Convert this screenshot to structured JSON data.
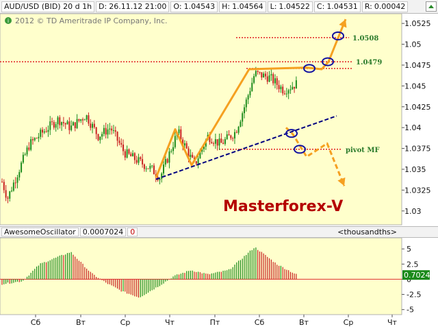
{
  "header": {
    "symbol": "AUD/USD (BID) 20 d 1h",
    "date_label": "D:",
    "date_value": "26.11.12 21:00",
    "open_label": "O:",
    "open_value": "1.04543",
    "high_label": "H:",
    "high_value": "1.04564",
    "low_label": "L:",
    "low_value": "1.04522",
    "close_label": "C:",
    "close_value": "1.04531",
    "range_label": "R:",
    "range_value": "0.00042"
  },
  "copyright": "2012 © TD Ameritrade IP Company, Inc.",
  "watermark": "Masterforex-V",
  "oscillator": {
    "name": "AwesomeOscillator",
    "value": "0.0007024",
    "flag": "0",
    "units": "<thousandths>",
    "current_label": "0.7024"
  },
  "colors": {
    "chart_bg": "#ffffcc",
    "bull_candle": "#1e8c1e",
    "bear_candle": "#c82020",
    "level_line": "#e02020",
    "trend_line": "#000080",
    "wave": "#f5a020",
    "marker": "#1010a0",
    "watermark": "#b40000",
    "level_label": "#2a7a2a"
  },
  "chart_data": {
    "type": "candlestick",
    "y_range": [
      1.0285,
      1.0535
    ],
    "y_ticks": [
      "1.0525",
      "1.05",
      "1.0475",
      "1.045",
      "1.0425",
      "1.04",
      "1.0375",
      "1.035",
      "1.0325",
      "1.03"
    ],
    "x_ticks": [
      "Сб",
      "Вт",
      "Ср",
      "Чт",
      "Пт",
      "Сб",
      "Вт",
      "Ср",
      "Чт"
    ],
    "key_points": [
      {
        "t": 0,
        "v": 1.0335
      },
      {
        "t": 8,
        "v": 1.0315
      },
      {
        "t": 20,
        "v": 1.034
      },
      {
        "t": 40,
        "v": 1.038
      },
      {
        "t": 60,
        "v": 1.0395
      },
      {
        "t": 82,
        "v": 1.041
      },
      {
        "t": 100,
        "v": 1.04
      },
      {
        "t": 122,
        "v": 1.0415
      },
      {
        "t": 140,
        "v": 1.039
      },
      {
        "t": 158,
        "v": 1.04
      },
      {
        "t": 178,
        "v": 1.037
      },
      {
        "t": 198,
        "v": 1.036
      },
      {
        "t": 218,
        "v": 1.035
      },
      {
        "t": 230,
        "v": 1.034
      },
      {
        "t": 256,
        "v": 1.0395
      },
      {
        "t": 280,
        "v": 1.0355
      },
      {
        "t": 300,
        "v": 1.039
      },
      {
        "t": 318,
        "v": 1.038
      },
      {
        "t": 340,
        "v": 1.0395
      },
      {
        "t": 355,
        "v": 1.043
      },
      {
        "t": 368,
        "v": 1.0465
      },
      {
        "t": 390,
        "v": 1.046
      },
      {
        "t": 410,
        "v": 1.0445
      },
      {
        "t": 430,
        "v": 1.0453
      }
    ],
    "levels": [
      {
        "label": "1.0508",
        "value": 1.0508
      },
      {
        "label": "1.0479",
        "value": 1.0479
      },
      {
        "label": "",
        "value": 1.0471
      },
      {
        "label": "pivot MF",
        "value": 1.0374
      }
    ],
    "trend_line": {
      "t1": 228,
      "v1": 1.0338,
      "t2": 492,
      "v2": 1.0414
    },
    "wave_up": [
      {
        "t": 228,
        "v": 1.034
      },
      {
        "t": 256,
        "v": 1.0398
      },
      {
        "t": 280,
        "v": 1.0355
      },
      {
        "t": 364,
        "v": 1.047
      },
      {
        "t": 448,
        "v": 1.0472
      },
      {
        "t": 470,
        "v": 1.047
      },
      {
        "t": 480,
        "v": 1.0479
      },
      {
        "t": 505,
        "v": 1.053
      }
    ],
    "wave_down": [
      {
        "t": 418,
        "v": 1.04
      },
      {
        "t": 428,
        "v": 1.0392
      },
      {
        "t": 448,
        "v": 1.0365
      },
      {
        "t": 478,
        "v": 1.0381
      },
      {
        "t": 503,
        "v": 1.033
      }
    ],
    "markers": [
      {
        "t": 494,
        "v": 1.051
      },
      {
        "t": 479,
        "v": 1.0479
      },
      {
        "t": 452,
        "v": 1.0471
      },
      {
        "t": 426,
        "v": 1.0393
      },
      {
        "t": 438,
        "v": 1.0374
      }
    ],
    "oscillator": {
      "y_range": [
        -5.6,
        6.6
      ],
      "y_ticks": [
        "5",
        "2.5",
        "0",
        "-2.5",
        "-5"
      ],
      "current": 0.7024,
      "key_points": [
        {
          "t": 0,
          "v": -0.8
        },
        {
          "t": 30,
          "v": -0.3
        },
        {
          "t": 55,
          "v": 2.5
        },
        {
          "t": 100,
          "v": 4.5
        },
        {
          "t": 130,
          "v": 1.0
        },
        {
          "t": 150,
          "v": -0.5
        },
        {
          "t": 175,
          "v": -2.0
        },
        {
          "t": 200,
          "v": -3.0
        },
        {
          "t": 230,
          "v": -1.0
        },
        {
          "t": 250,
          "v": 0.5
        },
        {
          "t": 275,
          "v": 1.5
        },
        {
          "t": 300,
          "v": 0.8
        },
        {
          "t": 330,
          "v": 1.5
        },
        {
          "t": 368,
          "v": 5.3
        },
        {
          "t": 400,
          "v": 2.5
        },
        {
          "t": 430,
          "v": 0.7
        }
      ]
    }
  }
}
